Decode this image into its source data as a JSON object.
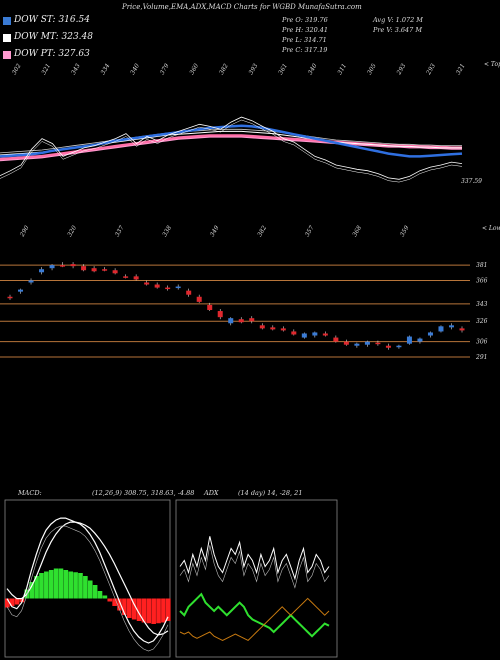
{
  "header": {
    "title": "Price,Volume,EMA,ADX,MACD Charts for WGBD MunafaSutra.com"
  },
  "legend": [
    {
      "label": "DOW ST: 316.54",
      "color": "#3a7bd5"
    },
    {
      "label": "DOW MT: 323.48",
      "color": "#ffffff"
    },
    {
      "label": "DOW PT: 327.63",
      "color": "#ff9ad0"
    }
  ],
  "info": {
    "prev_open": "Pre O: 319.76",
    "prev_high": "Pre H: 320.41",
    "prev_low": "Pre L: 314.71",
    "prev_close": "Pre C: 317.19",
    "avg_volume": "Avg V: 1.072 M",
    "prev_volume": "Pre V: 3.647 M"
  },
  "colors": {
    "up": "#3a7bd5",
    "down": "#e0282e",
    "level": "#b8753a",
    "macd_green": "#2fe02f",
    "macd_red": "#ff2020",
    "adx_orange": "#c87a10"
  },
  "chart_data": [
    {
      "type": "line",
      "name": "ema_panel",
      "top_labels": [
        "302",
        "321",
        "343",
        "334",
        "340",
        "379",
        "360",
        "382",
        "393",
        "361",
        "340",
        "311",
        "305",
        "293",
        "293",
        "321"
      ],
      "bottom_labels": [
        "290",
        "320",
        "337",
        "338",
        "349",
        "382",
        "357",
        "368",
        "359"
      ],
      "top_axis_label": "< Tops",
      "bottom_axis_label": "< Lows",
      "current_value": "337.59",
      "price": [
        303,
        310,
        318,
        340,
        355,
        348,
        330,
        336,
        342,
        345,
        350,
        355,
        362,
        348,
        358,
        352,
        360,
        365,
        370,
        375,
        372,
        368,
        378,
        385,
        380,
        372,
        365,
        355,
        350,
        340,
        330,
        325,
        318,
        315,
        312,
        310,
        306,
        300,
        298,
        302,
        310,
        315,
        318,
        322,
        320
      ],
      "ema_blue": [
        330,
        331,
        332,
        333,
        335,
        338,
        340,
        342,
        344,
        346,
        349,
        352,
        354,
        356,
        358,
        360,
        362,
        364,
        366,
        368,
        370,
        371,
        372,
        373,
        372,
        370,
        367,
        364,
        361,
        358,
        355,
        352,
        349,
        346,
        343,
        340,
        337,
        334,
        332,
        330,
        330,
        331,
        332,
        333,
        334
      ],
      "ema_white": [
        332,
        333,
        334,
        335,
        336,
        338,
        340,
        342,
        344,
        346,
        348,
        350,
        352,
        354,
        356,
        358,
        360,
        361,
        362,
        363,
        364,
        365,
        365,
        365,
        364,
        363,
        362,
        360,
        358,
        356,
        354,
        352,
        350,
        349,
        348,
        347,
        346,
        345,
        344,
        344,
        343,
        343,
        342,
        342,
        342
      ],
      "ema_pink": [
        326,
        327,
        328,
        329,
        330,
        332,
        334,
        336,
        338,
        340,
        342,
        344,
        346,
        348,
        350,
        352,
        354,
        356,
        357,
        358,
        359,
        359,
        359,
        359,
        358,
        357,
        356,
        355,
        354,
        353,
        352,
        351,
        350,
        349,
        348,
        347,
        346,
        345,
        345,
        344,
        344,
        343,
        343,
        342,
        342
      ]
    },
    {
      "type": "candlestick",
      "name": "price_panel",
      "levels": [
        381,
        366,
        343,
        326,
        306,
        291
      ],
      "candles": [
        [
          350,
          352,
          347,
          349
        ],
        [
          355,
          358,
          353,
          357
        ],
        [
          364,
          368,
          362,
          366
        ],
        [
          374,
          379,
          372,
          377
        ],
        [
          378,
          382,
          376,
          381
        ],
        [
          381,
          384,
          379,
          380
        ],
        [
          382,
          384,
          378,
          380
        ],
        [
          380,
          382,
          375,
          376
        ],
        [
          378,
          380,
          374,
          375
        ],
        [
          377,
          379,
          375,
          376
        ],
        [
          376,
          378,
          372,
          373
        ],
        [
          370,
          372,
          368,
          369
        ],
        [
          370,
          372,
          366,
          367
        ],
        [
          364,
          366,
          361,
          362
        ],
        [
          362,
          364,
          358,
          359
        ],
        [
          359,
          361,
          356,
          358
        ],
        [
          359,
          362,
          357,
          360
        ],
        [
          356,
          358,
          350,
          352
        ],
        [
          350,
          352,
          344,
          345
        ],
        [
          342,
          344,
          336,
          337
        ],
        [
          336,
          338,
          328,
          330
        ],
        [
          324,
          330,
          322,
          329
        ],
        [
          328,
          330,
          324,
          325
        ],
        [
          329,
          331,
          324,
          326
        ],
        [
          322,
          324,
          318,
          319
        ],
        [
          320,
          322,
          317,
          318
        ],
        [
          319,
          321,
          316,
          317
        ],
        [
          316,
          318,
          312,
          313
        ],
        [
          310,
          315,
          309,
          314
        ],
        [
          312,
          316,
          310,
          315
        ],
        [
          314,
          316,
          311,
          312
        ],
        [
          310,
          312,
          305,
          306
        ],
        [
          306,
          308,
          302,
          303
        ],
        [
          302,
          305,
          300,
          304
        ],
        [
          303,
          307,
          301,
          306
        ],
        [
          305,
          307,
          302,
          304
        ],
        [
          302,
          304,
          298,
          300
        ],
        [
          301,
          303,
          299,
          302
        ],
        [
          304,
          312,
          303,
          311
        ],
        [
          306,
          310,
          304,
          309
        ],
        [
          312,
          316,
          310,
          315
        ],
        [
          316,
          322,
          315,
          321
        ],
        [
          320,
          324,
          318,
          322
        ],
        [
          319,
          321,
          315,
          317
        ]
      ]
    },
    {
      "type": "area",
      "name": "macd_panel",
      "label": "MACD:",
      "params": "(12,26,9) 308.75, 318.63, -4.88",
      "histogram": [
        -12,
        -10,
        -8,
        -5,
        12,
        22,
        30,
        34,
        36,
        38,
        40,
        40,
        38,
        36,
        35,
        34,
        30,
        24,
        18,
        10,
        4,
        -4,
        -10,
        -16,
        -22,
        -26,
        -28,
        -30,
        -32,
        -33,
        -34,
        -33,
        -32,
        -30
      ],
      "macd_line": [
        -20,
        -28,
        -30,
        -24,
        -10,
        8,
        24,
        38,
        48,
        54,
        58,
        60,
        60,
        58,
        56,
        54,
        50,
        44,
        36,
        26,
        14,
        2,
        -10,
        -22,
        -34,
        -44,
        -52,
        -58,
        -62,
        -64,
        -62,
        -56,
        -48,
        -38
      ],
      "signal_line": [
        -10,
        -16,
        -20,
        -20,
        -16,
        -8,
        2,
        14,
        26,
        36,
        44,
        50,
        54,
        56,
        56,
        55,
        53,
        50,
        45,
        39,
        32,
        24,
        15,
        5,
        -5,
        -15,
        -25,
        -34,
        -42,
        -49,
        -54,
        -56,
        -55,
        -52
      ]
    },
    {
      "type": "line",
      "name": "adx_panel",
      "label": "ADX",
      "params": "(14 day) 14, -28, 21",
      "plus_di": [
        20,
        18,
        22,
        24,
        26,
        28,
        24,
        22,
        20,
        22,
        20,
        18,
        20,
        22,
        24,
        22,
        18,
        16,
        15,
        14,
        13,
        12,
        10,
        12,
        14,
        16,
        18,
        16,
        14,
        12,
        10,
        8,
        10,
        12,
        14,
        13
      ],
      "minus_di": [
        10,
        9,
        10,
        8,
        7,
        8,
        9,
        10,
        8,
        7,
        6,
        7,
        8,
        9,
        8,
        7,
        6,
        8,
        10,
        12,
        14,
        16,
        18,
        20,
        22,
        20,
        18,
        20,
        22,
        24,
        26,
        24,
        22,
        20,
        18,
        20
      ],
      "adx": [
        60,
        62,
        58,
        64,
        60,
        66,
        62,
        70,
        64,
        60,
        58,
        62,
        66,
        64,
        68,
        60,
        64,
        62,
        58,
        64,
        60,
        62,
        66,
        58,
        62,
        64,
        60,
        56,
        62,
        66,
        58,
        60,
        64,
        62,
        58,
        60
      ]
    }
  ]
}
